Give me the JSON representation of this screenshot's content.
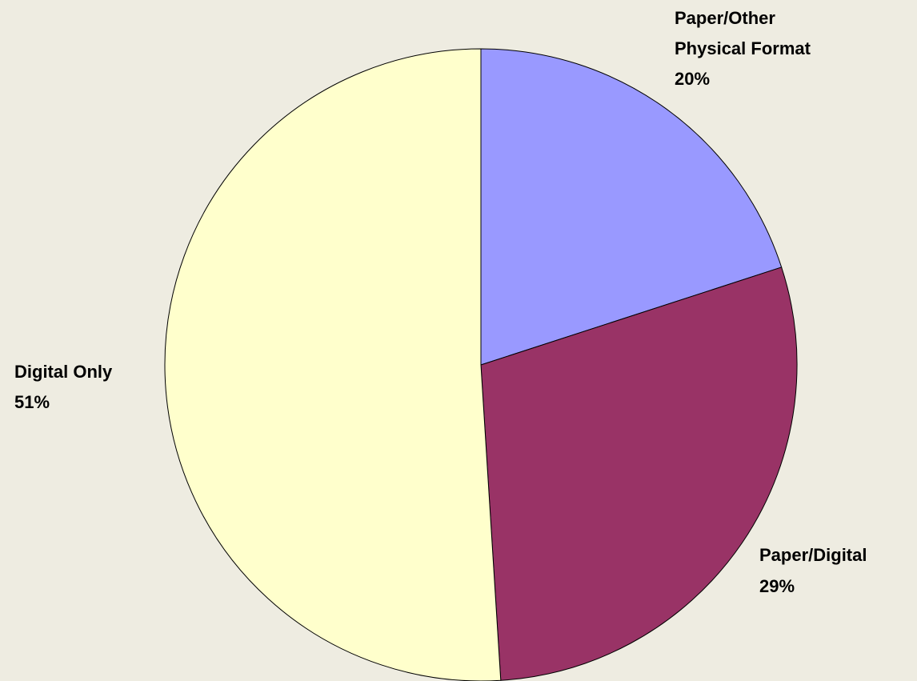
{
  "chart_data": {
    "type": "pie",
    "background": "#EEECE1",
    "slices": [
      {
        "label": "Paper/Other Physical Format",
        "label_lines": [
          "Paper/Other",
          "Physical Format"
        ],
        "value": 20,
        "value_label": "20%",
        "color": "#9999FF"
      },
      {
        "label": "Paper/Digital",
        "label_lines": [
          "Paper/Digital"
        ],
        "value": 29,
        "value_label": "29%",
        "color": "#993366"
      },
      {
        "label": "Digital Only",
        "label_lines": [
          "Digital Only"
        ],
        "value": 51,
        "value_label": "51%",
        "color": "#FFFFCC"
      }
    ],
    "start": "12 o'clock",
    "direction": "clockwise",
    "legend": "none",
    "data_labels": "outside"
  }
}
